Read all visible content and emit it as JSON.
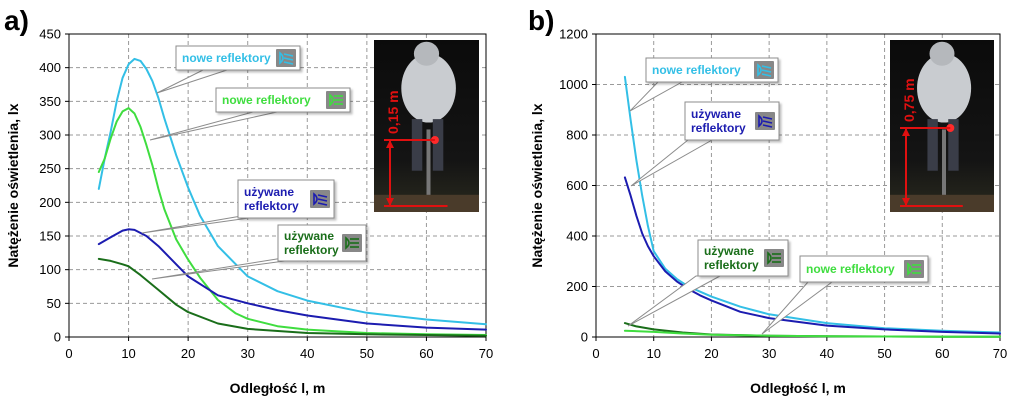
{
  "colors": {
    "new_dipped": "#33bfe6",
    "new_main": "#3fdd3f",
    "used_dipped": "#1c1cb0",
    "used_main": "#1a6e1a",
    "icon_bg": "#888888",
    "photo_marker": "#e01010"
  },
  "chart_data": [
    {
      "type": "line",
      "panel_label": "a)",
      "xlabel": "Odległość l, m",
      "ylabel": "Natężenie oświetlenia, lx",
      "xlim": [
        0,
        70
      ],
      "ylim": [
        0,
        450
      ],
      "xticks": [
        0,
        10,
        20,
        30,
        40,
        50,
        60,
        70
      ],
      "yticks": [
        0,
        50,
        100,
        150,
        200,
        250,
        300,
        350,
        400,
        450
      ],
      "grid": true,
      "series": [
        {
          "name": "nowe reflektory",
          "color_key": "new_dipped",
          "icon": "dipped-beam-icon",
          "points": [
            [
              5,
              220
            ],
            [
              6,
              265
            ],
            [
              7,
              305
            ],
            [
              8,
              350
            ],
            [
              9,
              385
            ],
            [
              10,
              405
            ],
            [
              11,
              413
            ],
            [
              12,
              410
            ],
            [
              13,
              398
            ],
            [
              14,
              380
            ],
            [
              15,
              355
            ],
            [
              16,
              325
            ],
            [
              18,
              270
            ],
            [
              20,
              222
            ],
            [
              22,
              180
            ],
            [
              25,
              135
            ],
            [
              30,
              90
            ],
            [
              35,
              68
            ],
            [
              40,
              54
            ],
            [
              50,
              36
            ],
            [
              60,
              26
            ],
            [
              70,
              19
            ]
          ]
        },
        {
          "name": "nowe reflektory",
          "color_key": "new_main",
          "icon": "main-beam-icon",
          "points": [
            [
              5,
              245
            ],
            [
              6,
              265
            ],
            [
              7,
              295
            ],
            [
              8,
              320
            ],
            [
              9,
              335
            ],
            [
              10,
              340
            ],
            [
              11,
              332
            ],
            [
              12,
              312
            ],
            [
              13,
              285
            ],
            [
              14,
              255
            ],
            [
              15,
              220
            ],
            [
              16,
              190
            ],
            [
              18,
              145
            ],
            [
              20,
              115
            ],
            [
              22,
              88
            ],
            [
              25,
              55
            ],
            [
              28,
              35
            ],
            [
              30,
              27
            ],
            [
              35,
              16
            ],
            [
              40,
              11
            ],
            [
              50,
              6
            ],
            [
              60,
              4
            ],
            [
              70,
              3
            ]
          ]
        },
        {
          "name": "używane reflektory",
          "color_key": "used_dipped",
          "icon": "dipped-beam-icon",
          "points": [
            [
              5,
              138
            ],
            [
              7,
              148
            ],
            [
              9,
              158
            ],
            [
              10,
              160
            ],
            [
              11,
              159
            ],
            [
              13,
              150
            ],
            [
              15,
              135
            ],
            [
              18,
              108
            ],
            [
              20,
              90
            ],
            [
              25,
              62
            ],
            [
              30,
              50
            ],
            [
              35,
              40
            ],
            [
              40,
              32
            ],
            [
              50,
              20
            ],
            [
              60,
              14
            ],
            [
              70,
              11
            ]
          ]
        },
        {
          "name": "używane reflektory",
          "color_key": "used_main",
          "icon": "main-beam-icon",
          "points": [
            [
              5,
              116
            ],
            [
              7,
              113
            ],
            [
              9,
              108
            ],
            [
              10,
              105
            ],
            [
              12,
              92
            ],
            [
              15,
              70
            ],
            [
              18,
              48
            ],
            [
              20,
              37
            ],
            [
              25,
              20
            ],
            [
              30,
              12
            ],
            [
              40,
              6
            ],
            [
              50,
              4
            ],
            [
              60,
              3
            ],
            [
              70,
              2
            ]
          ]
        }
      ],
      "callouts": [
        {
          "text_lines": [
            "nowe reflektory"
          ],
          "series_index": 0,
          "icon": "dipped-beam-icon"
        },
        {
          "text_lines": [
            "nowe reflektory"
          ],
          "series_index": 1,
          "icon": "main-beam-icon"
        },
        {
          "text_lines": [
            "używane",
            "reflektory"
          ],
          "series_index": 2,
          "icon": "dipped-beam-icon"
        },
        {
          "text_lines": [
            "używane",
            "reflektory"
          ],
          "series_index": 3,
          "icon": "main-beam-icon"
        }
      ],
      "photo_height_label": "0,15 m"
    },
    {
      "type": "line",
      "panel_label": "b)",
      "xlabel": "Odległość l, m",
      "ylabel": "Natężenie oświetlenia, lx",
      "xlim": [
        0,
        70
      ],
      "ylim": [
        0,
        1200
      ],
      "xticks": [
        0,
        10,
        20,
        30,
        40,
        50,
        60,
        70
      ],
      "yticks": [
        0,
        200,
        400,
        600,
        800,
        1000,
        1200
      ],
      "grid": true,
      "series": [
        {
          "name": "nowe reflektory",
          "color_key": "new_dipped",
          "icon": "dipped-beam-icon",
          "points": [
            [
              5,
              1030
            ],
            [
              6,
              860
            ],
            [
              7,
              700
            ],
            [
              8,
              560
            ],
            [
              9,
              440
            ],
            [
              10,
              340
            ],
            [
              12,
              270
            ],
            [
              14,
              230
            ],
            [
              16,
              200
            ],
            [
              18,
              180
            ],
            [
              20,
              160
            ],
            [
              25,
              120
            ],
            [
              30,
              90
            ],
            [
              40,
              55
            ],
            [
              50,
              35
            ],
            [
              60,
              25
            ],
            [
              70,
              18
            ]
          ]
        },
        {
          "name": "używane reflektory",
          "color_key": "used_dipped",
          "icon": "dipped-beam-icon",
          "points": [
            [
              5,
              632
            ],
            [
              6,
              560
            ],
            [
              7,
              480
            ],
            [
              8,
              410
            ],
            [
              9,
              360
            ],
            [
              10,
              320
            ],
            [
              12,
              260
            ],
            [
              14,
              220
            ],
            [
              16,
              190
            ],
            [
              18,
              165
            ],
            [
              20,
              145
            ],
            [
              25,
              100
            ],
            [
              30,
              75
            ],
            [
              40,
              45
            ],
            [
              50,
              30
            ],
            [
              60,
              20
            ],
            [
              70,
              14
            ]
          ]
        },
        {
          "name": "używane reflektory",
          "color_key": "used_main",
          "icon": "main-beam-icon",
          "points": [
            [
              5,
              55
            ],
            [
              7,
              42
            ],
            [
              10,
              30
            ],
            [
              15,
              18
            ],
            [
              20,
              10
            ],
            [
              30,
              5
            ],
            [
              40,
              3
            ],
            [
              50,
              2
            ],
            [
              60,
              1
            ],
            [
              70,
              1
            ]
          ]
        },
        {
          "name": "nowe reflektory",
          "color_key": "new_main",
          "icon": "main-beam-icon",
          "points": [
            [
              5,
              25
            ],
            [
              10,
              20
            ],
            [
              15,
              14
            ],
            [
              20,
              9
            ],
            [
              30,
              5
            ],
            [
              40,
              3
            ],
            [
              50,
              2
            ],
            [
              60,
              1
            ],
            [
              70,
              1
            ]
          ]
        }
      ],
      "callouts": [
        {
          "text_lines": [
            "nowe reflektory"
          ],
          "series_index": 0,
          "icon": "dipped-beam-icon"
        },
        {
          "text_lines": [
            "używane",
            "reflektory"
          ],
          "series_index": 1,
          "icon": "dipped-beam-icon"
        },
        {
          "text_lines": [
            "używane",
            "reflektory"
          ],
          "series_index": 2,
          "icon": "main-beam-icon"
        },
        {
          "text_lines": [
            "nowe reflektory"
          ],
          "series_index": 3,
          "icon": "main-beam-icon"
        }
      ],
      "photo_height_label": "0,75 m"
    }
  ]
}
